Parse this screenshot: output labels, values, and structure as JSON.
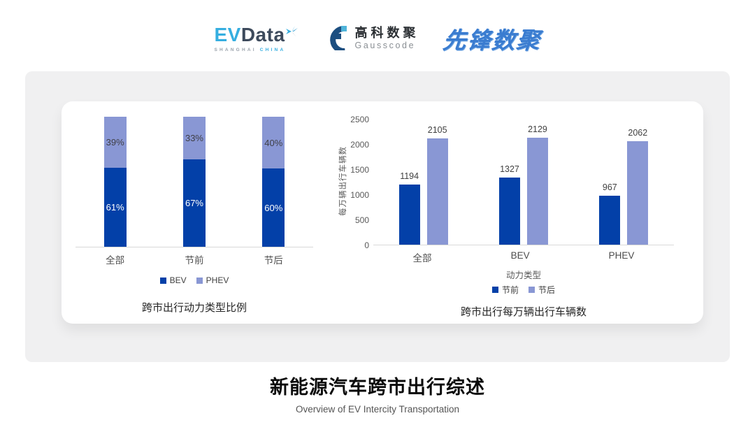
{
  "header": {
    "logos": {
      "evdata": {
        "ev": "EV",
        "data": "Data",
        "sub_left": "SHANGHAI",
        "sub_right": "CHINA"
      },
      "gausscode": {
        "cn": "高科数聚",
        "en": "Gausscode"
      },
      "xianfeng": {
        "text": "先锋数聚"
      }
    }
  },
  "chart_data": [
    {
      "type": "bar",
      "subtype": "stacked-100",
      "title": "跨市出行动力类型比例",
      "categories": [
        "全部",
        "节前",
        "节后"
      ],
      "series": [
        {
          "name": "BEV",
          "color": "#0340A8",
          "label_color": "#FFFFFF",
          "values": [
            61,
            67,
            60
          ]
        },
        {
          "name": "PHEV",
          "color": "#8997D4",
          "label_color": "#3F3F46",
          "values": [
            39,
            33,
            40
          ]
        }
      ],
      "value_suffix": "%",
      "ylim": [
        0,
        100
      ],
      "grid": false,
      "legend_position": "bottom",
      "xlabel": "",
      "ylabel": ""
    },
    {
      "type": "bar",
      "subtype": "grouped",
      "title": "跨市出行每万辆出行车辆数",
      "categories": [
        "全部",
        "BEV",
        "PHEV"
      ],
      "series": [
        {
          "name": "节前",
          "color": "#0340A8",
          "values": [
            1194,
            1327,
            967
          ]
        },
        {
          "name": "节后",
          "color": "#8997D4",
          "values": [
            2105,
            2129,
            2062
          ]
        }
      ],
      "xlabel": "动力类型",
      "ylabel": "每万辆出行车辆数",
      "ylim": [
        0,
        2500
      ],
      "yticks": [
        0,
        500,
        1000,
        1500,
        2000,
        2500
      ],
      "grid": false,
      "legend_position": "bottom"
    }
  ],
  "footer": {
    "title": "新能源汽车跨市出行综述",
    "subtitle": "Overview of EV Intercity Transportation"
  },
  "colors": {
    "primary_bar": "#0340A8",
    "secondary_bar": "#8997D4",
    "panel_bg": "#F0F0F1",
    "card_bg": "#FFFFFF",
    "axis_line": "#D9D9D9",
    "tick_text": "#595959",
    "value_text": "#404040",
    "evdata_blue": "#35AEE0",
    "evdata_dark": "#3D4A5C",
    "gausscode_navy": "#1C4E80",
    "gausscode_lightblue": "#4FB3D9",
    "xianfeng_blue": "#3A7CD0"
  }
}
